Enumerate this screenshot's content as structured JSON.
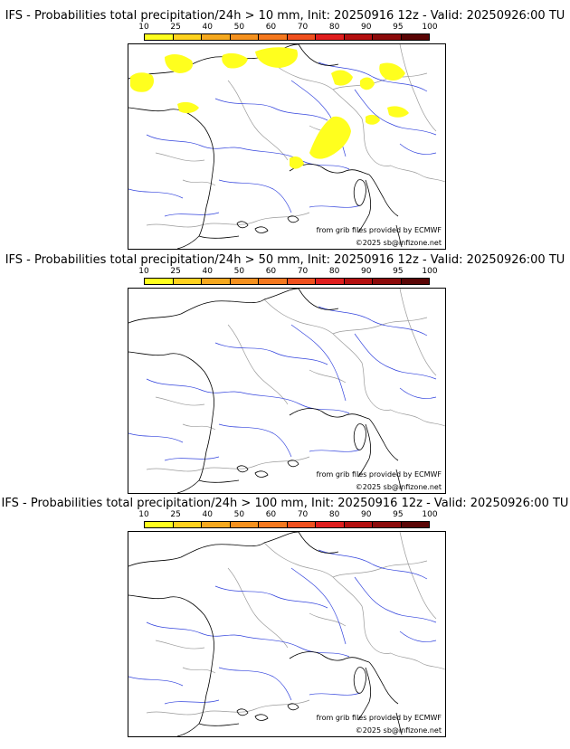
{
  "colorbar": {
    "ticks": [
      "10",
      "25",
      "40",
      "50",
      "60",
      "70",
      "80",
      "90",
      "95",
      "100"
    ],
    "colors": [
      "#ffff1e",
      "#ffd21e",
      "#f5a81e",
      "#f5911e",
      "#f5781e",
      "#f0501e",
      "#e01e1e",
      "#b40f0f",
      "#8c0a0a",
      "#5a0505"
    ]
  },
  "panels": [
    {
      "title": "IFS - Probabilities total precipitation/24h > 10 mm, Init: 20250916 12z - Valid: 20250926:00 TU",
      "credit_line1": "from grib files provided by ECMWF",
      "credit_line2": "©2025 sb@infizone.net",
      "precip_areas": "shown"
    },
    {
      "title": "IFS - Probabilities total precipitation/24h > 50 mm, Init: 20250916 12z - Valid: 20250926:00 TU",
      "credit_line1": "from grib files provided by ECMWF",
      "credit_line2": "©2025 sb@infizone.net",
      "precip_areas": "none"
    },
    {
      "title": "IFS - Probabilities total precipitation/24h > 100 mm, Init: 20250916 12z - Valid: 20250926:00 TU",
      "credit_line1": "from grib files provided by ECMWF",
      "credit_line2": "©2025 sb@infizone.net",
      "precip_areas": "none"
    }
  ],
  "style": {
    "coast_color": "#000000",
    "river_color": "#3344dd",
    "border_color": "#9a9a9a",
    "precip_color": "#ffff1e"
  }
}
